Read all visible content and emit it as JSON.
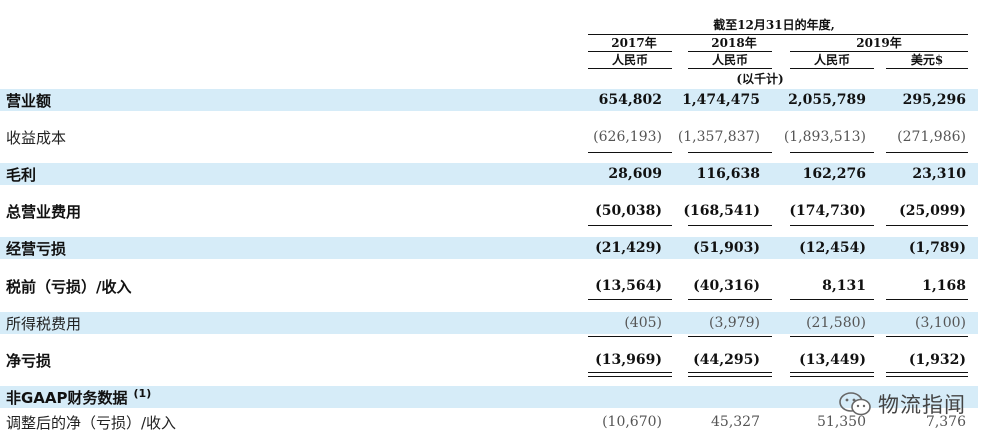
{
  "header": {
    "period": "截至12月31日的年度,",
    "years": [
      "2017年",
      "2018年",
      "2019年"
    ],
    "currencies": [
      "人民币",
      "人民币",
      "人民币",
      "美元$"
    ],
    "unit_note": "(以千计)"
  },
  "rows": [
    {
      "label": "营业额",
      "values": [
        "654,802",
        "1,474,475",
        "2,055,789",
        "295,296"
      ]
    },
    {
      "label": "收益成本",
      "values": [
        "(626,193)",
        "(1,357,837)",
        "(1,893,513)",
        "(271,986)"
      ]
    },
    {
      "label": "毛利",
      "values": [
        "28,609",
        "116,638",
        "162,276",
        "23,310"
      ]
    },
    {
      "label": "总营业费用",
      "values": [
        "(50,038)",
        "(168,541)",
        "(174,730)",
        "(25,099)"
      ]
    },
    {
      "label": "经营亏损",
      "values": [
        "(21,429)",
        "(51,903)",
        "(12,454)",
        "(1,789)"
      ]
    },
    {
      "label": "税前（亏损）/收入",
      "values": [
        "(13,564)",
        "(40,316)",
        "8,131",
        "1,168"
      ]
    },
    {
      "label": "所得税费用",
      "values": [
        "(405)",
        "(3,979)",
        "(21,580)",
        "(3,100)"
      ]
    },
    {
      "label": "净亏损",
      "values": [
        "(13,969)",
        "(44,295)",
        "(13,449)",
        "(1,932)"
      ]
    },
    {
      "label": "非GAAP财务数据",
      "footnote": "(1)"
    },
    {
      "label": "调整后的净（亏损）/收入",
      "values": [
        "(10,670)",
        "45,327",
        "51,350",
        "7,376"
      ]
    }
  ],
  "watermark": {
    "text": "物流指闻",
    "icon": "wechat-icon"
  },
  "colors": {
    "row_shade": "#d6ecf8",
    "text": "#111111"
  }
}
